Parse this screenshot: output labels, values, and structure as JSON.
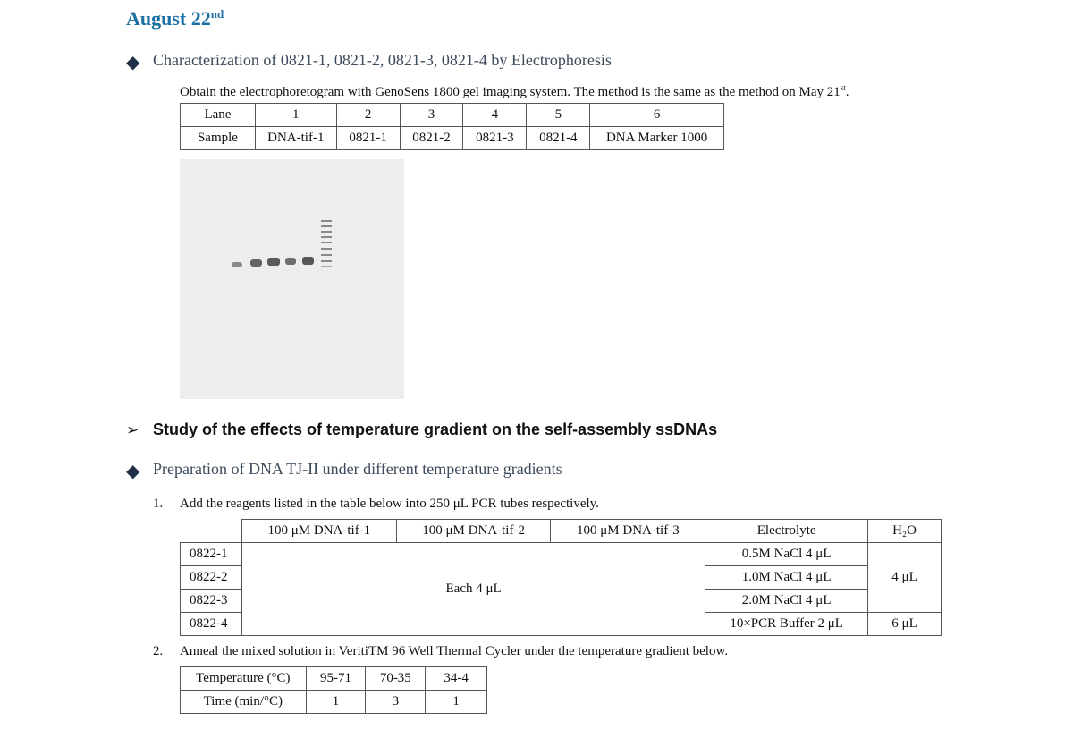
{
  "date": {
    "text": "August 22",
    "sup": "nd"
  },
  "section1": {
    "bullet": "◆",
    "title": "Characterization of 0821-1, 0821-2, 0821-3, 0821-4 by Electrophoresis",
    "para_main": "Obtain the electrophoretogram with GenoSens 1800 gel imaging system. The method is the same as the method on May 21",
    "para_sup": "st",
    "para_end": ".",
    "lane_table": {
      "rows": [
        [
          "Lane",
          "1",
          "2",
          "3",
          "4",
          "5",
          "6"
        ],
        [
          "Sample",
          "DNA-tif-1",
          "0821-1",
          "0821-2",
          "0821-3",
          "0821-4",
          "DNA Marker 1000"
        ]
      ]
    }
  },
  "heading2": {
    "arrow": "➢",
    "title": "Study of the effects of temperature gradient on the self-assembly ssDNAs"
  },
  "section2": {
    "bullet": "◆",
    "title": "Preparation of DNA TJ-II under different temperature gradients",
    "step1_num": "1.",
    "step1": "Add the reagents listed in the table below into 250 μL PCR tubes respectively.",
    "reagent_table": {
      "headers": [
        "",
        "100 μM DNA-tif-1",
        "100 μM DNA-tif-2",
        "100 μM DNA-tif-3",
        "Electrolyte",
        "H₂O"
      ],
      "rows": [
        "0822-1",
        "0822-2",
        "0822-3",
        "0822-4"
      ],
      "merged": "Each 4 μL",
      "electrolyte": [
        "0.5M NaCl 4 μL",
        "1.0M NaCl 4 μL",
        "2.0M NaCl 4 μL",
        "10×PCR Buffer 2 μL"
      ],
      "water_merged": "4 μL",
      "water_last": "6 μL"
    },
    "step2_num": "2.",
    "step2": "Anneal the mixed solution in VeritiTM 96 Well Thermal Cycler under the temperature gradient below.",
    "temp_table": {
      "rows": [
        [
          "Temperature (°C)",
          "95-71",
          "70-35",
          "34-4"
        ],
        [
          "Time (min/°C)",
          "1",
          "3",
          "1"
        ]
      ]
    }
  }
}
